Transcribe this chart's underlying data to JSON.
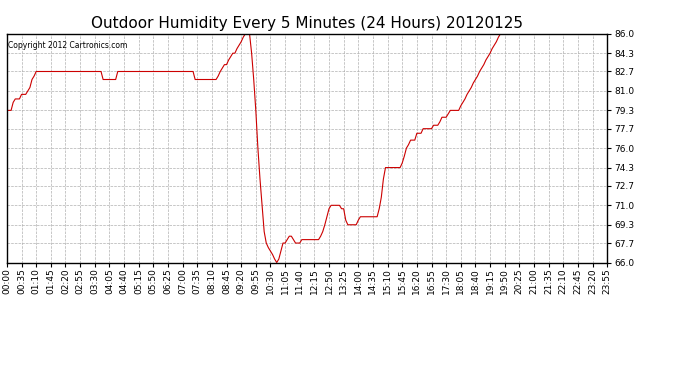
{
  "title": "Outdoor Humidity Every 5 Minutes (24 Hours) 20120125",
  "copyright_text": "Copyright 2012 Cartronics.com",
  "line_color": "#cc0000",
  "background_color": "#ffffff",
  "plot_bg_color": "#ffffff",
  "grid_color": "#b0b0b0",
  "ylim": [
    66.0,
    86.0
  ],
  "yticks": [
    66.0,
    67.7,
    69.3,
    71.0,
    72.7,
    74.3,
    76.0,
    77.7,
    79.3,
    81.0,
    82.7,
    84.3,
    86.0
  ],
  "title_fontsize": 11,
  "tick_fontsize": 6.5,
  "humidity_data": [
    79.3,
    79.3,
    79.3,
    80.0,
    80.3,
    80.3,
    80.3,
    80.7,
    80.7,
    80.7,
    81.0,
    81.3,
    82.0,
    82.3,
    82.7,
    82.7,
    82.7,
    82.7,
    82.7,
    82.7,
    82.7,
    82.7,
    82.7,
    82.7,
    82.7,
    82.7,
    82.7,
    82.7,
    82.7,
    82.7,
    82.7,
    82.7,
    82.7,
    82.7,
    82.7,
    82.7,
    82.7,
    82.7,
    82.7,
    82.7,
    82.7,
    82.7,
    82.7,
    82.7,
    82.7,
    82.7,
    82.0,
    82.0,
    82.0,
    82.0,
    82.0,
    82.0,
    82.0,
    82.7,
    82.7,
    82.7,
    82.7,
    82.7,
    82.7,
    82.7,
    82.7,
    82.7,
    82.7,
    82.7,
    82.7,
    82.7,
    82.7,
    82.7,
    82.7,
    82.7,
    82.7,
    82.7,
    82.7,
    82.7,
    82.7,
    82.7,
    82.7,
    82.7,
    82.7,
    82.7,
    82.7,
    82.7,
    82.7,
    82.7,
    82.7,
    82.7,
    82.7,
    82.7,
    82.7,
    82.7,
    82.0,
    82.0,
    82.0,
    82.0,
    82.0,
    82.0,
    82.0,
    82.0,
    82.0,
    82.0,
    82.0,
    82.3,
    82.7,
    83.0,
    83.3,
    83.3,
    83.7,
    84.0,
    84.3,
    84.3,
    84.7,
    85.0,
    85.3,
    85.7,
    86.0,
    86.0,
    86.0,
    84.3,
    82.0,
    79.3,
    76.0,
    73.3,
    71.0,
    68.7,
    67.7,
    67.3,
    67.0,
    66.7,
    66.3,
    66.0,
    66.3,
    67.0,
    67.7,
    67.7,
    68.0,
    68.3,
    68.3,
    68.0,
    67.7,
    67.7,
    67.7,
    68.0,
    68.0,
    68.0,
    68.0,
    68.0,
    68.0,
    68.0,
    68.0,
    68.0,
    68.3,
    68.7,
    69.3,
    70.0,
    70.7,
    71.0,
    71.0,
    71.0,
    71.0,
    71.0,
    70.7,
    70.7,
    69.7,
    69.3,
    69.3,
    69.3,
    69.3,
    69.3,
    69.7,
    70.0,
    70.0,
    70.0,
    70.0,
    70.0,
    70.0,
    70.0,
    70.0,
    70.0,
    70.7,
    71.7,
    73.3,
    74.3,
    74.3,
    74.3,
    74.3,
    74.3,
    74.3,
    74.3,
    74.3,
    74.7,
    75.3,
    76.0,
    76.3,
    76.7,
    76.7,
    76.7,
    77.3,
    77.3,
    77.3,
    77.7,
    77.7,
    77.7,
    77.7,
    77.7,
    78.0,
    78.0,
    78.0,
    78.3,
    78.7,
    78.7,
    78.7,
    79.0,
    79.3,
    79.3,
    79.3,
    79.3,
    79.3,
    79.7,
    80.0,
    80.3,
    80.7,
    81.0,
    81.3,
    81.7,
    82.0,
    82.3,
    82.7,
    83.0,
    83.3,
    83.7,
    84.0,
    84.3,
    84.7,
    85.0,
    85.3,
    85.7,
    86.0,
    86.0,
    86.0,
    86.0,
    86.0,
    86.0,
    86.0,
    86.0,
    86.0,
    86.0,
    86.0,
    86.0,
    86.0,
    86.0,
    86.0,
    86.0,
    86.0,
    86.0,
    86.0,
    86.0,
    86.0,
    86.0,
    86.0,
    86.0,
    86.0,
    86.0,
    86.0,
    86.0,
    86.0,
    86.0,
    86.0,
    86.0,
    86.0,
    86.0,
    86.0,
    86.0,
    86.0,
    86.0,
    86.0,
    86.0,
    86.0,
    86.0,
    86.0,
    86.0,
    86.0,
    86.0,
    86.0,
    86.0,
    86.0,
    86.0,
    86.0,
    86.0
  ],
  "xtick_step": 7,
  "border_color": "#000000"
}
